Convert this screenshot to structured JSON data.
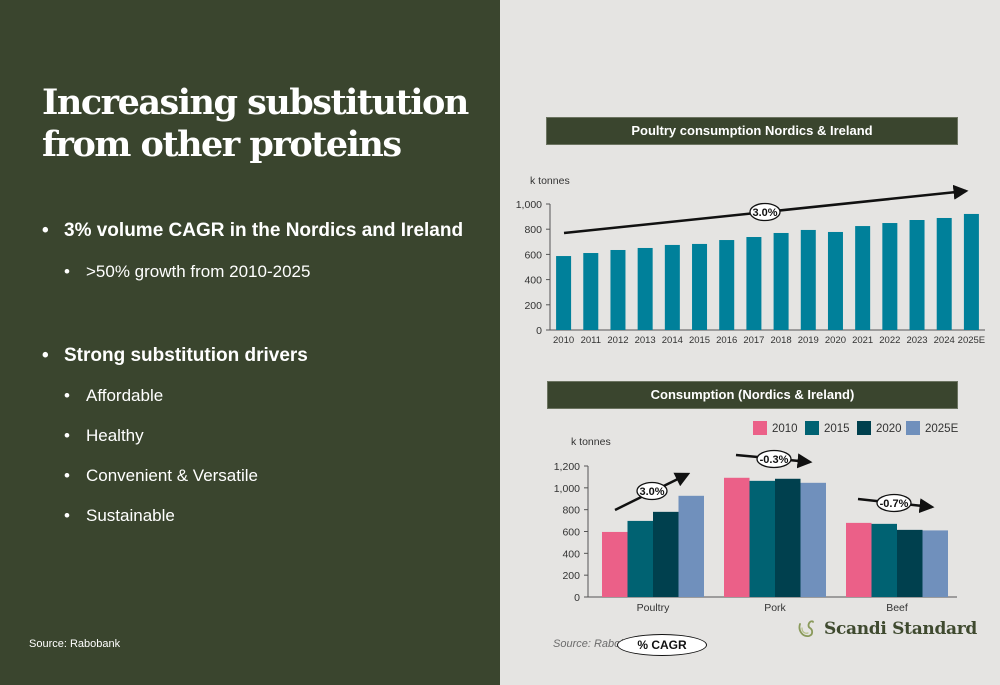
{
  "left": {
    "title_line1": "Increasing substitution",
    "title_line2": "from other proteins",
    "bullets": [
      {
        "level": 1,
        "text": "3% volume CAGR in the Nordics and Ireland"
      },
      {
        "level": 2,
        "text": ">50% growth from 2010-2025"
      },
      {
        "level": 1,
        "text": "Strong substitution drivers"
      },
      {
        "level": 2,
        "text": "Affordable"
      },
      {
        "level": 2,
        "text": "Healthy"
      },
      {
        "level": 2,
        "text": "Convenient & Versatile"
      },
      {
        "level": 2,
        "text": "Sustainable"
      }
    ],
    "bullet_glyph": "•",
    "source": "Source: Rabobank"
  },
  "right": {
    "source": "Source: Rabobank",
    "cagr_key": "% CAGR",
    "logo_text": "Scandi Standard",
    "logo_icon": "bird-swirl-icon"
  },
  "colors": {
    "dark_green": "#3a452e",
    "teal": "#00809a",
    "pink": "#eb6088",
    "dark_teal": "#006272",
    "darkest_teal": "#00404e",
    "slate_blue": "#7090bc",
    "panel_bg": "#e5e4e2"
  },
  "chart_data": [
    {
      "type": "bar",
      "title": "Poultry consumption Nordics & Ireland",
      "ylabel": "k tonnes",
      "xlabel": "",
      "categories": [
        "2010",
        "2011",
        "2012",
        "2013",
        "2014",
        "2015",
        "2016",
        "2017",
        "2018",
        "2019",
        "2020",
        "2021",
        "2022",
        "2023",
        "2024",
        "2025E"
      ],
      "values": [
        587,
        611,
        635,
        651,
        675,
        683,
        714,
        738,
        770,
        794,
        778,
        825,
        849,
        873,
        889,
        921
      ],
      "ylim": [
        0,
        1000
      ],
      "yticks": [
        0,
        200,
        400,
        600,
        800,
        "1,000"
      ],
      "grid": false,
      "annotations": [
        {
          "text": "3.0%",
          "type": "trend-arrow",
          "from": "2010",
          "to": "2025E"
        }
      ]
    },
    {
      "type": "bar",
      "title": "Consumption (Nordics & Ireland)",
      "ylabel": "k tonnes",
      "xlabel": "",
      "categories": [
        "Poultry",
        "Pork",
        "Beef"
      ],
      "series": [
        {
          "name": "2010",
          "values": [
            596,
            1092,
            679
          ]
        },
        {
          "name": "2015",
          "values": [
            697,
            1064,
            670
          ]
        },
        {
          "name": "2020",
          "values": [
            780,
            1083,
            615
          ]
        },
        {
          "name": "2025E",
          "values": [
            927,
            1046,
            610
          ]
        }
      ],
      "ylim": [
        0,
        1200
      ],
      "yticks": [
        0,
        200,
        400,
        600,
        800,
        "1,000",
        "1,200"
      ],
      "grid": false,
      "legend": "top-right",
      "annotations": [
        {
          "text": "3.0%",
          "category": "Poultry",
          "direction": "up"
        },
        {
          "text": "-0.3%",
          "category": "Pork",
          "direction": "flat"
        },
        {
          "text": "-0.7%",
          "category": "Beef",
          "direction": "flat"
        }
      ]
    }
  ]
}
